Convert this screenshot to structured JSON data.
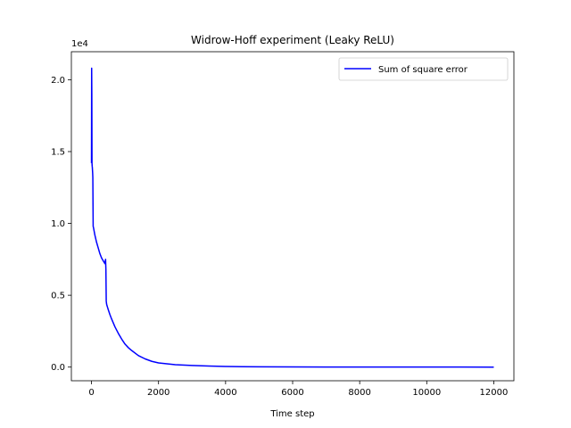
{
  "chart_data": {
    "type": "line",
    "title": "Widrow-Hoff experiment (Leaky ReLU)",
    "xlabel": "Time step",
    "ylabel": "",
    "y_offset_label": "1e4",
    "xlim": [
      -600,
      12600
    ],
    "ylim": [
      -950,
      21950
    ],
    "x_ticks": [
      0,
      2000,
      4000,
      6000,
      8000,
      10000,
      12000
    ],
    "x_tick_labels": [
      "0",
      "2000",
      "4000",
      "6000",
      "8000",
      "10000",
      "12000"
    ],
    "y_ticks": [
      0,
      5000,
      10000,
      15000,
      20000
    ],
    "y_tick_labels": [
      "0.0",
      "0.5",
      "1.0",
      "1.5",
      "2.0"
    ],
    "grid": false,
    "legend_position": "upper right",
    "series": [
      {
        "name": "Sum of square error",
        "color": "#0000ff",
        "x": [
          0,
          5,
          10,
          15,
          20,
          25,
          30,
          35,
          40,
          50,
          60,
          80,
          100,
          150,
          200,
          250,
          300,
          350,
          400,
          420,
          430,
          440,
          450,
          460,
          480,
          500,
          550,
          600,
          700,
          800,
          900,
          1000,
          1100,
          1200,
          1400,
          1600,
          1800,
          2000,
          2500,
          3000,
          3500,
          4000,
          4500,
          5000,
          6000,
          7000,
          8000,
          9000,
          10000,
          11000,
          12000
        ],
        "y": [
          14200,
          20800,
          19000,
          14200,
          14000,
          13900,
          13700,
          13500,
          13200,
          9800,
          9700,
          9450,
          9200,
          8700,
          8300,
          7900,
          7600,
          7400,
          7200,
          7500,
          6800,
          4600,
          4400,
          4300,
          4150,
          4000,
          3650,
          3350,
          2800,
          2350,
          1950,
          1600,
          1350,
          1150,
          800,
          570,
          400,
          290,
          170,
          110,
          70,
          45,
          30,
          22,
          12,
          7,
          4,
          2,
          1,
          0.5,
          0.3
        ]
      }
    ]
  }
}
